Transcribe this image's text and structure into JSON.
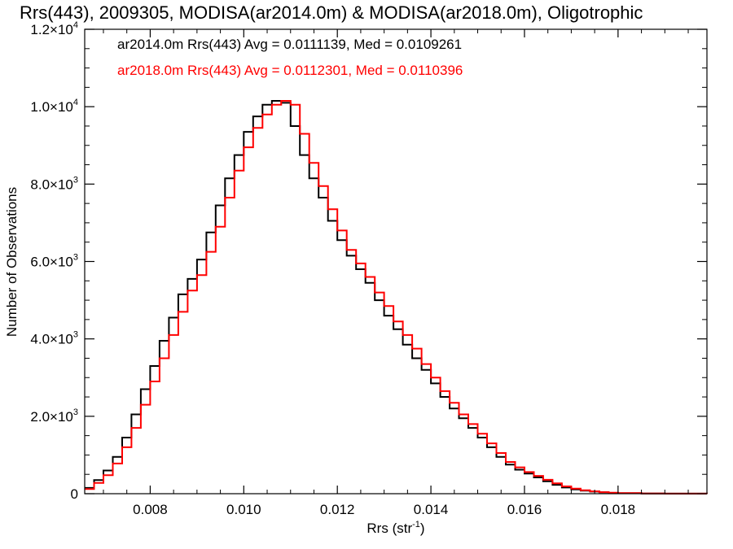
{
  "chart_data": {
    "type": "line",
    "title": "Rrs(443), 2009305, MODISA(ar2014.0m) & MODISA(ar2018.0m), Oligotrophic",
    "xlabel": "Rrs (str",
    "xlabel_sup": "-1",
    "xlabel_close": ")",
    "ylabel": "Number of Observations",
    "xlim": [
      0.0066,
      0.0199
    ],
    "ylim": [
      0,
      12000
    ],
    "grid": false,
    "legend_position": "top-left",
    "x_ticks": [
      {
        "value": 0.008,
        "label": "0.008"
      },
      {
        "value": 0.01,
        "label": "0.010"
      },
      {
        "value": 0.012,
        "label": "0.012"
      },
      {
        "value": 0.014,
        "label": "0.014"
      },
      {
        "value": 0.016,
        "label": "0.016"
      },
      {
        "value": 0.018,
        "label": "0.018"
      }
    ],
    "y_ticks": [
      {
        "value": 0,
        "mant": "0",
        "exp": ""
      },
      {
        "value": 2000,
        "mant": "2.0×10",
        "exp": "3"
      },
      {
        "value": 4000,
        "mant": "4.0×10",
        "exp": "3"
      },
      {
        "value": 6000,
        "mant": "6.0×10",
        "exp": "3"
      },
      {
        "value": 8000,
        "mant": "8.0×10",
        "exp": "3"
      },
      {
        "value": 10000,
        "mant": "1.0×10",
        "exp": "4"
      },
      {
        "value": 12000,
        "mant": "1.2×10",
        "exp": "4"
      }
    ],
    "series": [
      {
        "label": "ar2014.0m Rrs(443) Avg = 0.0111139, Med = 0.0109261",
        "color": "#000000",
        "x": [
          0.0066,
          0.0068,
          0.007,
          0.0072,
          0.0074,
          0.0076,
          0.0078,
          0.008,
          0.0082,
          0.0084,
          0.0086,
          0.0088,
          0.009,
          0.0092,
          0.0094,
          0.0096,
          0.0098,
          0.01,
          0.0102,
          0.0104,
          0.0106,
          0.0108,
          0.011,
          0.0112,
          0.0114,
          0.0116,
          0.0118,
          0.012,
          0.0122,
          0.0124,
          0.0126,
          0.0128,
          0.013,
          0.0132,
          0.0134,
          0.0136,
          0.0138,
          0.014,
          0.0142,
          0.0144,
          0.0146,
          0.0148,
          0.015,
          0.0152,
          0.0154,
          0.0156,
          0.0158,
          0.016,
          0.0162,
          0.0164,
          0.0166,
          0.0168,
          0.017,
          0.0172,
          0.0174,
          0.0176,
          0.0178,
          0.018,
          0.0185,
          0.019,
          0.0199
        ],
        "y": [
          150,
          350,
          600,
          950,
          1450,
          2050,
          2700,
          3300,
          3950,
          4550,
          5150,
          5550,
          6050,
          6750,
          7450,
          8150,
          8750,
          9350,
          9750,
          10050,
          10150,
          10100,
          9500,
          8750,
          8150,
          7650,
          7050,
          6550,
          6150,
          5800,
          5450,
          5000,
          4600,
          4250,
          3850,
          3500,
          3200,
          2850,
          2500,
          2200,
          1950,
          1700,
          1450,
          1200,
          950,
          750,
          620,
          520,
          420,
          320,
          230,
          160,
          110,
          80,
          55,
          35,
          20,
          12,
          6,
          2,
          0
        ]
      },
      {
        "label": "ar2018.0m Rrs(443) Avg = 0.0112301, Med = 0.0110396",
        "color": "#ff0000",
        "x": [
          0.0066,
          0.0068,
          0.007,
          0.0072,
          0.0074,
          0.0076,
          0.0078,
          0.008,
          0.0082,
          0.0084,
          0.0086,
          0.0088,
          0.009,
          0.0092,
          0.0094,
          0.0096,
          0.0098,
          0.01,
          0.0102,
          0.0104,
          0.0106,
          0.0108,
          0.011,
          0.0112,
          0.0114,
          0.0116,
          0.0118,
          0.012,
          0.0122,
          0.0124,
          0.0126,
          0.0128,
          0.013,
          0.0132,
          0.0134,
          0.0136,
          0.0138,
          0.014,
          0.0142,
          0.0144,
          0.0146,
          0.0148,
          0.015,
          0.0152,
          0.0154,
          0.0156,
          0.0158,
          0.016,
          0.0162,
          0.0164,
          0.0166,
          0.0168,
          0.017,
          0.0172,
          0.0174,
          0.0176,
          0.0178,
          0.018,
          0.0185,
          0.019,
          0.0199
        ],
        "y": [
          120,
          280,
          480,
          780,
          1200,
          1700,
          2300,
          2900,
          3500,
          4100,
          4700,
          5250,
          5650,
          6250,
          6900,
          7650,
          8350,
          8950,
          9450,
          9800,
          10050,
          10150,
          10050,
          9300,
          8550,
          7950,
          7350,
          6800,
          6300,
          5950,
          5600,
          5200,
          4850,
          4450,
          4100,
          3750,
          3350,
          3000,
          2650,
          2350,
          2050,
          1800,
          1550,
          1300,
          1050,
          820,
          680,
          560,
          460,
          360,
          270,
          190,
          130,
          90,
          60,
          40,
          25,
          14,
          7,
          3,
          0
        ]
      }
    ]
  }
}
